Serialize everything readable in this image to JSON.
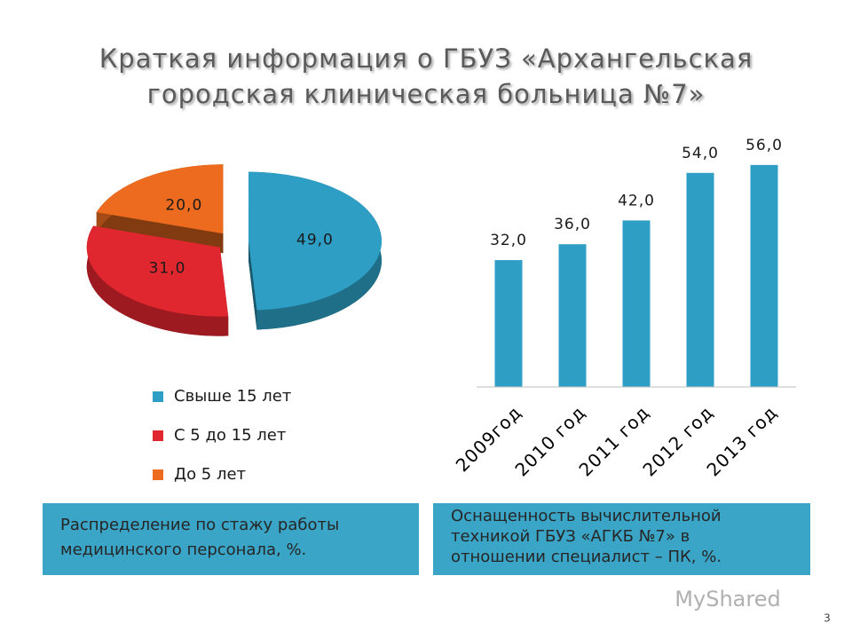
{
  "title_lines": [
    "Краткая информация о ГБУЗ «Архангельская",
    "городская клиническая больница №7»"
  ],
  "chart_data": [
    {
      "type": "pie",
      "categories": [
        "Свыше 15 лет",
        "С 5 до 15 лет",
        "До 5 лет"
      ],
      "values": [
        49,
        31,
        20
      ],
      "value_labels": [
        "49,0",
        "31,0",
        "20,0"
      ],
      "colors": [
        "#2e9ec4",
        "#e0262e",
        "#ec6b1e"
      ]
    },
    {
      "type": "bar",
      "categories": [
        "2009год",
        "2010 год",
        "2011 год",
        "2012 год",
        "2013 год"
      ],
      "values": [
        32,
        36,
        42,
        54,
        56
      ],
      "value_labels": [
        "32,0",
        "36,0",
        "42,0",
        "54,0",
        "56,0"
      ],
      "color": "#2e9ec4",
      "ylim": [
        0,
        60
      ]
    }
  ],
  "captions": [
    [
      "Распределение по стажу работы",
      "медицинского персонала, %."
    ],
    [
      "Оснащенность вычислительной",
      "техникой ГБУЗ «АГКБ №7» в",
      "отношении специалист – ПК, %."
    ]
  ],
  "watermark": "MyShared",
  "page_number": "3"
}
